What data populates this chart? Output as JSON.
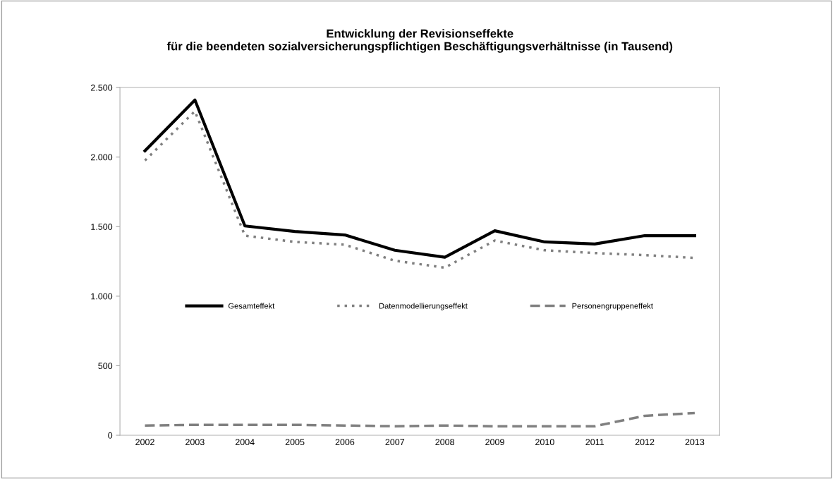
{
  "chart_data": {
    "type": "line",
    "title": "Entwicklung der Revisionseffekte\nfür die beendeten sozialversicherungspflichtigen Beschäftigungsverhältnisse (in Tausend)",
    "categories": [
      "2002",
      "2003",
      "2004",
      "2005",
      "2006",
      "2007",
      "2008",
      "2009",
      "2010",
      "2011",
      "2012",
      "2013"
    ],
    "series": [
      {
        "name": "Gesamteffekt",
        "color": "#000000",
        "line_style": "solid",
        "values": [
          2045,
          2410,
          1505,
          1465,
          1440,
          1330,
          1280,
          1470,
          1390,
          1375,
          1435,
          1435
        ]
      },
      {
        "name": "Datenmodellierungseffekt",
        "color": "#808080",
        "line_style": "dotted",
        "values": [
          1975,
          2330,
          1435,
          1390,
          1370,
          1255,
          1205,
          1400,
          1330,
          1310,
          1295,
          1275
        ]
      },
      {
        "name": "Personengruppeneffekt",
        "color": "#808080",
        "line_style": "dashed",
        "values": [
          70,
          75,
          75,
          75,
          70,
          65,
          70,
          65,
          65,
          65,
          140,
          160
        ]
      }
    ],
    "ylim": [
      0,
      2500
    ],
    "yticks": [
      {
        "value": 0,
        "label": "0"
      },
      {
        "value": 500,
        "label": "500"
      },
      {
        "value": 1000,
        "label": "1.000"
      },
      {
        "value": 1500,
        "label": "1.500"
      },
      {
        "value": 2000,
        "label": "2.000"
      },
      {
        "value": 2500,
        "label": "2.500"
      }
    ],
    "grid": false,
    "legend": "center",
    "marker": "none"
  }
}
